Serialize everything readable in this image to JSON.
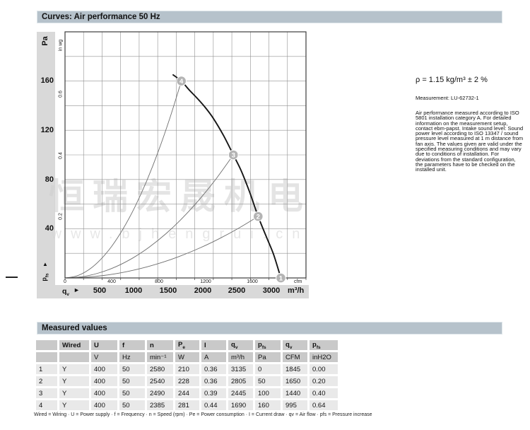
{
  "page": {
    "title_curves": "Curves: Air performance 50 Hz",
    "title_measured": "Measured values"
  },
  "chart": {
    "y_axis": {
      "unit_primary": "Pa",
      "unit_secondary": "in wg",
      "primary_ticks": [
        "160",
        "120",
        "80",
        "40"
      ],
      "secondary_ticks": [
        "0.6",
        "0.4",
        "0.2"
      ],
      "bottom_label_main": "p",
      "bottom_label_sub": "fs",
      "arrow": "▲"
    },
    "x_axis": {
      "cfm_ticks": [
        "0",
        "400",
        "800",
        "1200",
        "1600"
      ],
      "cfm_unit": "cfm",
      "m3h_ticks": [
        "500",
        "1000",
        "1500",
        "2000",
        "2500",
        "3000"
      ],
      "m3h_unit": "m³/h",
      "label_main": "q",
      "label_sub": "v",
      "arrow": "►"
    }
  },
  "chart_data": {
    "type": "line",
    "title": "Air performance 50 Hz",
    "xlabel": "qv (air flow)",
    "ylabel": "pfs (pressure increase)",
    "x_units": [
      "m³/h",
      "cfm"
    ],
    "y_units": [
      "Pa",
      "in wg"
    ],
    "x_range_m3h": [
      0,
      3500
    ],
    "y_range_pa": [
      0,
      200
    ],
    "x_ticks_m3h": [
      500,
      1000,
      1500,
      2000,
      2500,
      3000
    ],
    "x_ticks_cfm": [
      0,
      400,
      800,
      1200,
      1600
    ],
    "y_ticks_pa": [
      40,
      80,
      120,
      160
    ],
    "y_ticks_inwg": [
      0.2,
      0.4,
      0.6
    ],
    "grid": true,
    "fan_curve_qv_pfs": [
      [
        1570,
        165
      ],
      [
        1690,
        160
      ],
      [
        1800,
        153
      ],
      [
        1920,
        146
      ],
      [
        2030,
        139
      ],
      [
        2150,
        130
      ],
      [
        2300,
        116
      ],
      [
        2445,
        100
      ],
      [
        2560,
        87
      ],
      [
        2680,
        70
      ],
      [
        2805,
        50
      ],
      [
        2920,
        34
      ],
      [
        3030,
        19
      ],
      [
        3135,
        0
      ]
    ],
    "operating_points": [
      {
        "label": "1",
        "qv_m3h": 3135,
        "pfs_pa": 0
      },
      {
        "label": "2",
        "qv_m3h": 2805,
        "pfs_pa": 50
      },
      {
        "label": "3",
        "qv_m3h": 2445,
        "pfs_pa": 100
      },
      {
        "label": "4",
        "qv_m3h": 1690,
        "pfs_pa": 160
      }
    ],
    "system_curves_to_points": [
      "4",
      "3",
      "2"
    ]
  },
  "notes": {
    "density": "ρ = 1.15 kg/m³ ± 2 %",
    "measurement": "Measurement: LU-62732-1",
    "description": "Air performance measured according to ISO 5801 installation category A. For detailed information on the measurement setup, contact ebm-papst. Intake sound level: Sound power level according to ISO 13347 / sound pressure level measured at 1 m distance from fan axis. The values given are valid under the specified measuring conditions and may vary due to conditions of installation. For deviations from the standard configuration, the parameters have to be checked on the installed unit."
  },
  "watermark": {
    "line1": "恒瑞宏晟机电",
    "line2": "www.bjhengrui.cn"
  },
  "table": {
    "headers": [
      {
        "main": "",
        "sub": ""
      },
      {
        "main": "Wired",
        "sub": ""
      },
      {
        "main": "U",
        "sub": ""
      },
      {
        "main": "f",
        "sub": ""
      },
      {
        "main": "n",
        "sub": ""
      },
      {
        "main": "P",
        "sub": "e"
      },
      {
        "main": "I",
        "sub": ""
      },
      {
        "main": "q",
        "sub": "v"
      },
      {
        "main": "p",
        "sub": "fs"
      },
      {
        "main": "q",
        "sub": "v"
      },
      {
        "main": "p",
        "sub": "fs"
      }
    ],
    "units": [
      "",
      "",
      "V",
      "Hz",
      "min⁻¹",
      "W",
      "A",
      "m³/h",
      "Pa",
      "CFM",
      "inH2O"
    ],
    "rows": [
      [
        "1",
        "Y",
        "400",
        "50",
        "2580",
        "210",
        "0.36",
        "3135",
        "0",
        "1845",
        "0.00"
      ],
      [
        "2",
        "Y",
        "400",
        "50",
        "2540",
        "228",
        "0.36",
        "2805",
        "50",
        "1650",
        "0.20"
      ],
      [
        "3",
        "Y",
        "400",
        "50",
        "2490",
        "244",
        "0.39",
        "2445",
        "100",
        "1440",
        "0.40"
      ],
      [
        "4",
        "Y",
        "400",
        "50",
        "2385",
        "281",
        "0.44",
        "1690",
        "160",
        "995",
        "0.64"
      ]
    ]
  },
  "footer": {
    "legend": "Wired = Wiring · U = Power supply · f = Frequency · n = Speed (rpm) · Pe = Power consumption · I = Current draw · qv = Air flow · pfs = Pressure increase"
  }
}
